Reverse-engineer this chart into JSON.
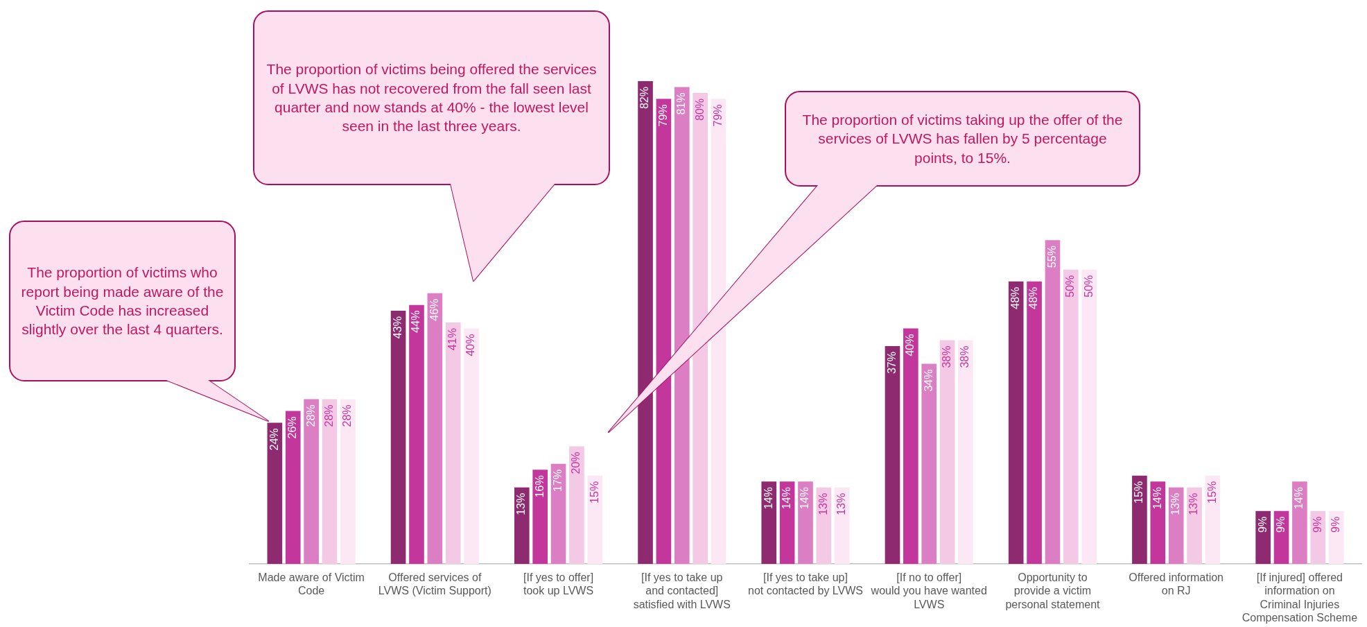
{
  "chart_data": {
    "type": "bar",
    "categories": [
      "Made aware of Victim Code",
      "Offered services of LVWS (Victim Support)",
      "[If yes to offer] took up LVWS",
      "[If yes to take up and contacted] satisfied with LVWS",
      "[If yes to take up] not contacted by LVWS",
      "[If no to offer] would you have wanted LVWS",
      "Opportunity to provide a victim personal statement",
      "Offered information on RJ",
      "[If injured] offered information on Criminal Injuries Compensation Scheme"
    ],
    "series": [
      {
        "color": "#8e2a6f",
        "values": [
          24,
          43,
          13,
          82,
          14,
          37,
          48,
          15,
          9
        ],
        "value_labels": [
          "24%",
          "43%",
          "13%",
          "82%",
          "14%",
          "37%",
          "48%",
          "15%",
          "9%"
        ]
      },
      {
        "color": "#c3379c",
        "values": [
          26,
          44,
          16,
          79,
          14,
          40,
          48,
          14,
          9
        ],
        "value_labels": [
          "26%",
          "44%",
          "16%",
          "79%",
          "14%",
          "40%",
          "48%",
          "14%",
          "9%"
        ]
      },
      {
        "color": "#dc7ec4",
        "values": [
          28,
          46,
          17,
          81,
          14,
          34,
          55,
          13,
          14
        ],
        "value_labels": [
          "28%",
          "46%",
          "17%",
          "81%",
          "14%",
          "34%",
          "55%",
          "13%",
          "14%"
        ]
      },
      {
        "color": "#f3c9e6",
        "values": [
          28,
          41,
          20,
          80,
          13,
          38,
          50,
          13,
          9
        ],
        "value_labels": [
          "28%",
          "41%",
          "20%",
          "80%",
          "13%",
          "38%",
          "50%",
          "13%",
          "9%"
        ]
      },
      {
        "color": "#fce8f5",
        "values": [
          28,
          40,
          15,
          79,
          13,
          38,
          50,
          15,
          9
        ],
        "value_labels": [
          "28%",
          "40%",
          "15%",
          "79%",
          "13%",
          "38%",
          "50%",
          "15%",
          "9%"
        ]
      }
    ],
    "annotations": [
      "The proportion of victims who report being made aware of the Victim Code has increased slightly over the last 4 quarters.",
      "The proportion of victims being offered the services of LVWS has not recovered from the fall seen last quarter and now stands at 40% - the lowest level seen in the last three years.",
      "The proportion of victims taking up the offer of the services of LVWS has fallen by 5 percentage points, to 15%."
    ],
    "grid": false,
    "legend": false
  }
}
